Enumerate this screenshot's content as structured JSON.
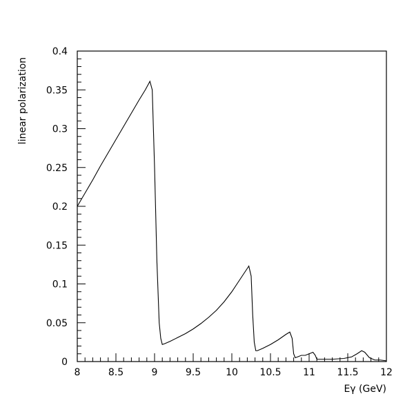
{
  "chart_data": {
    "type": "line",
    "title": "",
    "xlabel": "Eγ (GeV)",
    "ylabel": "linear polarization",
    "xlim": [
      8,
      12
    ],
    "ylim": [
      0,
      0.4
    ],
    "xticks": [
      8,
      8.5,
      9,
      9.5,
      10,
      10.5,
      11,
      11.5,
      12
    ],
    "xtick_labels": [
      "8",
      "8.5",
      "9",
      "9.5",
      "10",
      "10.5",
      "11",
      "11.5",
      "12"
    ],
    "yticks": [
      0,
      0.05,
      0.1,
      0.15,
      0.2,
      0.25,
      0.3,
      0.35,
      0.4
    ],
    "ytick_labels": [
      "0",
      "0.05",
      "0.1",
      "0.15",
      "0.2",
      "0.25",
      "0.3",
      "0.35",
      "0.4"
    ],
    "grid": false,
    "series": [
      {
        "x": [
          8.0,
          8.1,
          8.2,
          8.3,
          8.4,
          8.5,
          8.6,
          8.7,
          8.8,
          8.88,
          8.94,
          8.97,
          9.0,
          9.03,
          9.06,
          9.08,
          9.1,
          9.13,
          9.2,
          9.3,
          9.4,
          9.5,
          9.6,
          9.7,
          9.8,
          9.9,
          10.0,
          10.1,
          10.18,
          10.22,
          10.25,
          10.27,
          10.29,
          10.31,
          10.33,
          10.4,
          10.5,
          10.6,
          10.7,
          10.75,
          10.78,
          10.8,
          10.82,
          10.85,
          10.9,
          10.95,
          11.0,
          11.05,
          11.08,
          11.1,
          11.15,
          11.3,
          11.45,
          11.55,
          11.62,
          11.68,
          11.72,
          11.78,
          11.85,
          11.92,
          12.0
        ],
        "y": [
          0.2,
          0.217,
          0.234,
          0.252,
          0.269,
          0.286,
          0.303,
          0.32,
          0.337,
          0.35,
          0.361,
          0.35,
          0.25,
          0.13,
          0.05,
          0.03,
          0.022,
          0.023,
          0.026,
          0.031,
          0.036,
          0.042,
          0.049,
          0.057,
          0.066,
          0.077,
          0.09,
          0.105,
          0.117,
          0.123,
          0.11,
          0.06,
          0.025,
          0.014,
          0.014,
          0.017,
          0.022,
          0.028,
          0.035,
          0.038,
          0.03,
          0.01,
          0.005,
          0.006,
          0.008,
          0.008,
          0.01,
          0.012,
          0.008,
          0.003,
          0.003,
          0.003,
          0.004,
          0.006,
          0.01,
          0.014,
          0.012,
          0.005,
          0.002,
          0.002,
          0.001
        ]
      }
    ]
  }
}
